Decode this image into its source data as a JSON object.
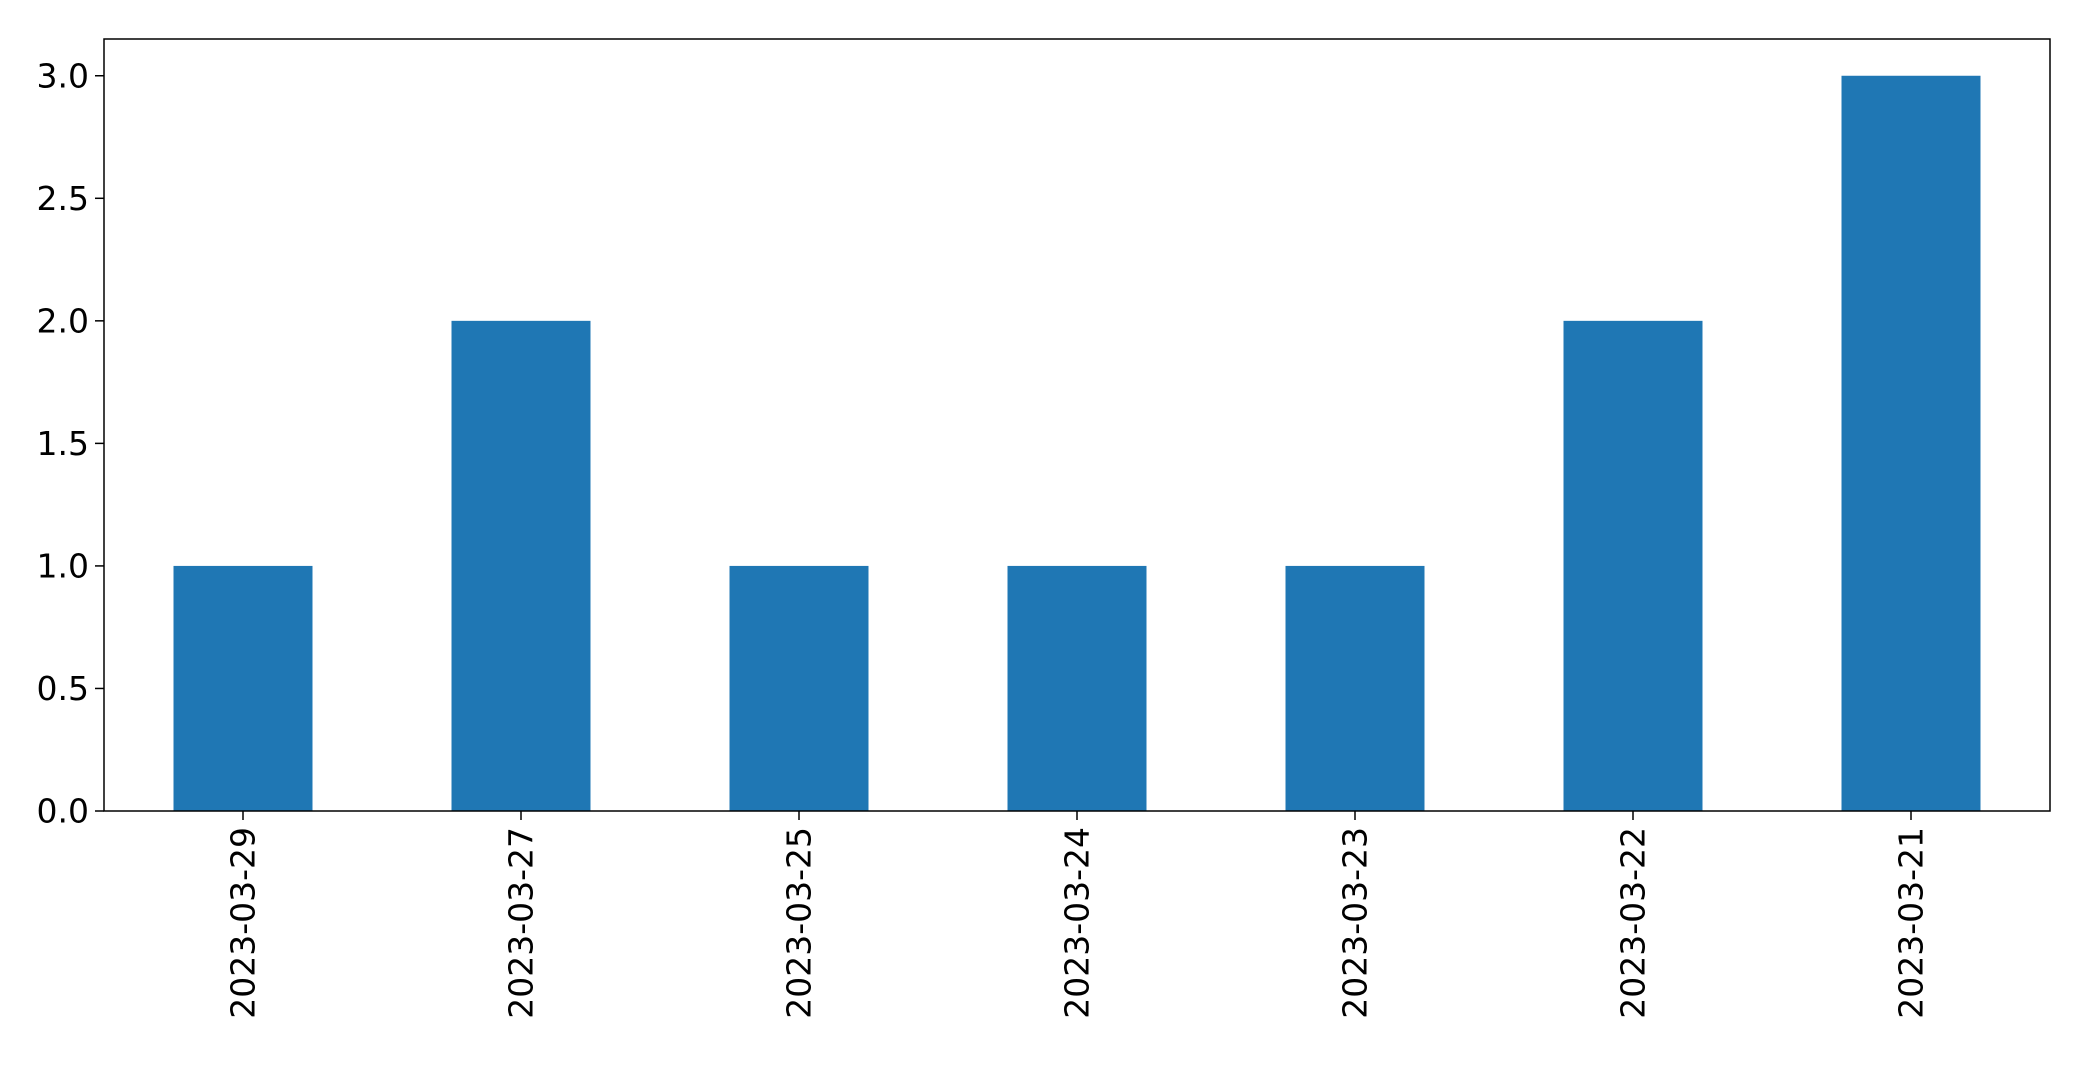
{
  "chart_data": {
    "type": "bar",
    "title": "",
    "xlabel": "",
    "ylabel": "",
    "categories": [
      "2023-03-29",
      "2023-03-27",
      "2023-03-25",
      "2023-03-24",
      "2023-03-23",
      "2023-03-22",
      "2023-03-21"
    ],
    "values": [
      1,
      2,
      1,
      1,
      1,
      2,
      3
    ],
    "ylim": [
      0,
      3.15
    ],
    "yticks": [
      0.0,
      0.5,
      1.0,
      1.5,
      2.0,
      2.5,
      3.0
    ],
    "ytick_labels": [
      "0.0",
      "0.5",
      "1.0",
      "1.5",
      "2.0",
      "2.5",
      "3.0"
    ],
    "bar_color": "#1f77b4",
    "grid": false,
    "legend": "none"
  }
}
